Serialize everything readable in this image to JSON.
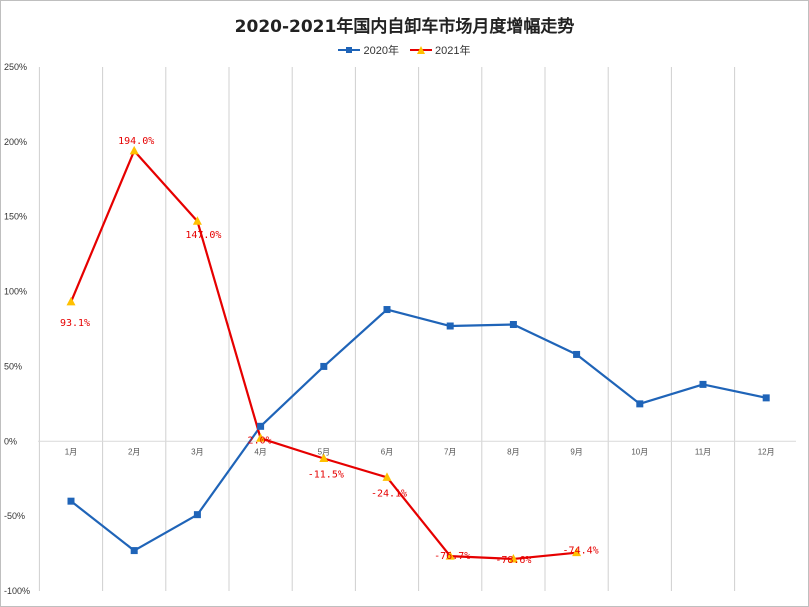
{
  "chart_data": {
    "type": "line",
    "title": "2020-2021年国内自卸车市场月度增幅走势",
    "xlabel": "",
    "ylabel": "",
    "categories": [
      "1月",
      "2月",
      "3月",
      "4月",
      "5月",
      "6月",
      "7月",
      "8月",
      "9月",
      "10月",
      "11月",
      "12月"
    ],
    "ylim": [
      -100,
      250
    ],
    "y_ticks": [
      250,
      200,
      150,
      100,
      50,
      0,
      -50,
      -100
    ],
    "y_tick_labels": [
      "250%",
      "200%",
      "150%",
      "100%",
      "50%",
      "0%",
      "-50%",
      "-100%"
    ],
    "grid": "vertical",
    "legend_position": "top-center",
    "series": [
      {
        "name": "2020年",
        "color": "#1f64b8",
        "marker": "square",
        "values": [
          -40,
          -73,
          -49,
          10,
          50,
          88,
          77,
          78,
          58,
          25,
          38,
          29
        ]
      },
      {
        "name": "2021年",
        "color": "#e60000",
        "marker": "triangle",
        "marker_color": "#ffc000",
        "values": [
          93.1,
          194.0,
          147.0,
          2.0,
          -11.5,
          -24.1,
          -76.7,
          -78.6,
          -74.4,
          null,
          null,
          null
        ],
        "data_labels": [
          "93.1%",
          "194.0%",
          "147.0%",
          "2.0%",
          "-11.5%",
          "-24.1%",
          "-76.7%",
          "-78.6%",
          "-74.4%",
          null,
          null,
          null
        ]
      }
    ]
  }
}
